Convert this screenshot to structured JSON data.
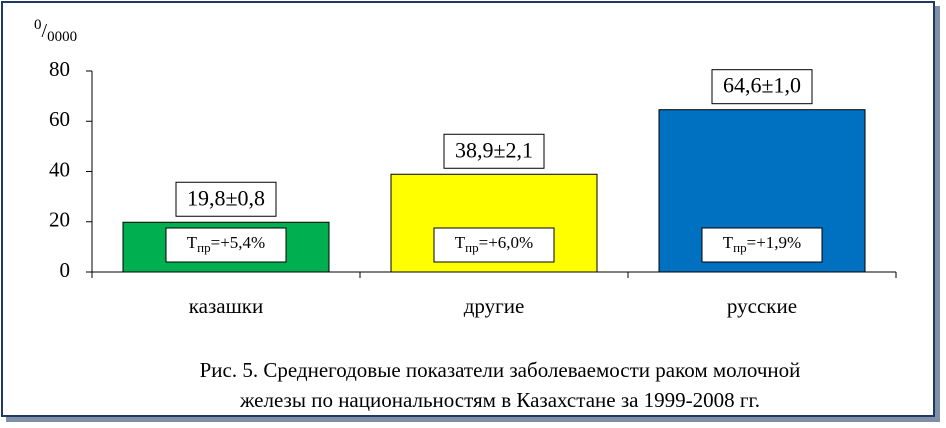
{
  "chart_data": {
    "type": "bar",
    "y_unit": {
      "sup": "0",
      "main": "/",
      "sub": "0000"
    },
    "categories": [
      "казашки",
      "другие",
      "русские"
    ],
    "values": [
      19.8,
      38.9,
      64.6
    ],
    "value_labels": [
      "19,8±0,8",
      "38,9±2,1",
      "64,6±1,0"
    ],
    "colors": [
      "#00b050",
      "#ffff00",
      "#0070c0"
    ],
    "inner_labels": [
      {
        "main": "Т",
        "sub": "пр",
        "rest": "=+5,4%"
      },
      {
        "main": "Т",
        "sub": "пр",
        "rest": "=+6,0%"
      },
      {
        "main": "Т",
        "sub": "пр",
        "rest": "=+1,9%"
      }
    ],
    "ylim": [
      0,
      80
    ],
    "yticks": [
      0,
      20,
      40,
      60,
      80
    ],
    "caption": [
      "Рис. 5. Среднегодовые показатели заболеваемости раком молочной",
      "железы по национальностям в Казахстане за 1999-2008 гг."
    ]
  }
}
